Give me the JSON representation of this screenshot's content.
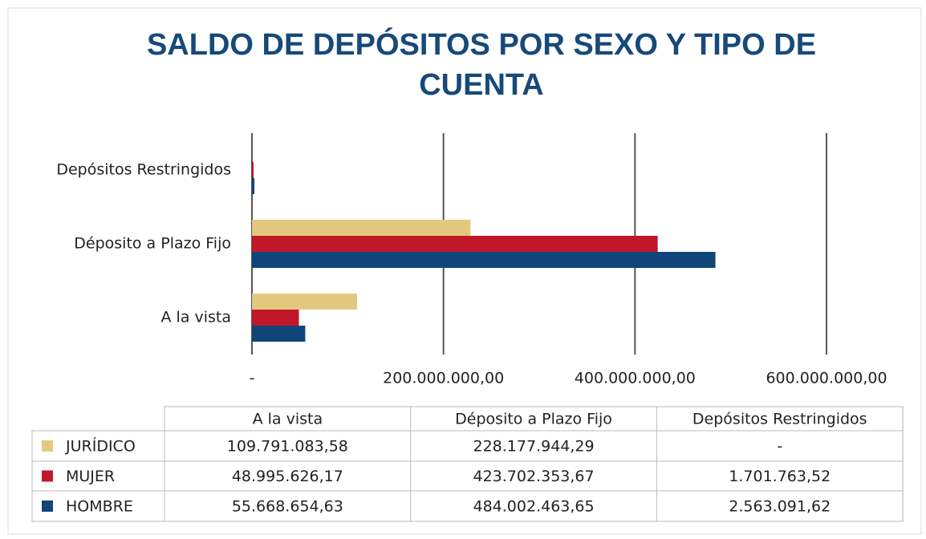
{
  "chart_data": {
    "type": "bar",
    "orientation": "horizontal",
    "title": "SALDO DE DEPÓSITOS POR SEXO Y TIPO DE CUENTA",
    "categories": [
      "A la vista",
      "Déposito a Plazo Fijo",
      "Depósitos Restringidos"
    ],
    "series": [
      {
        "name": "JURÍDICO",
        "color": "#e3c97f",
        "values": [
          109791083.58,
          228177944.29,
          null
        ],
        "value_labels": [
          "109.791.083,58",
          "228.177.944,29",
          "-"
        ]
      },
      {
        "name": "MUJER",
        "color": "#c0182a",
        "values": [
          48995626.17,
          423702353.67,
          1701763.52
        ],
        "value_labels": [
          "48.995.626,17",
          "423.702.353,67",
          "1.701.763,52"
        ]
      },
      {
        "name": "HOMBRE",
        "color": "#0f4677",
        "values": [
          55668654.63,
          484002463.65,
          2563091.62
        ],
        "value_labels": [
          "55.668.654,63",
          "484.002.463,65",
          "2.563.091,62"
        ]
      }
    ],
    "xlim": [
      0,
      600000000
    ],
    "xticks": [
      {
        "value": 0,
        "label": "-"
      },
      {
        "value": 200000000,
        "label": "200.000.000,00"
      },
      {
        "value": 400000000,
        "label": "400.000.000,00"
      },
      {
        "value": 600000000,
        "label": "600.000.000,00"
      }
    ],
    "grid": true
  }
}
